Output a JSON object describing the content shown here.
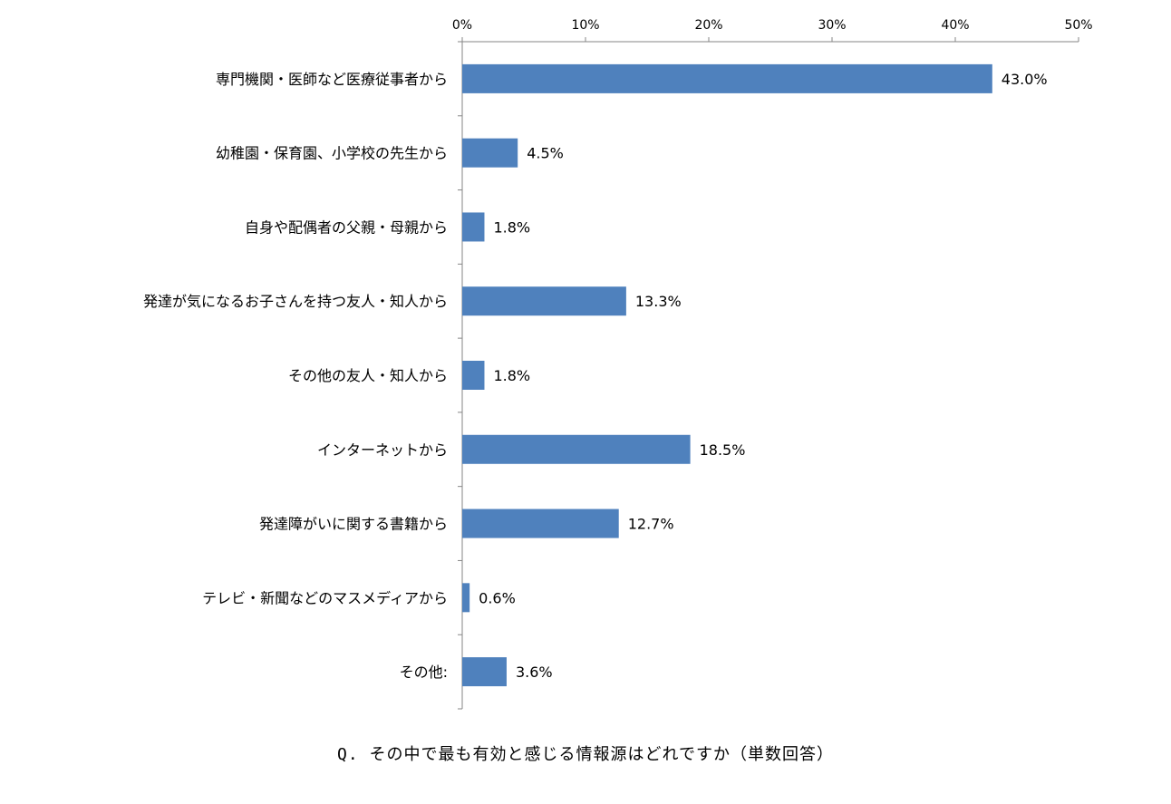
{
  "chart_data": {
    "type": "bar",
    "orientation": "horizontal",
    "categories": [
      "専門機関・医師など医療従事者から",
      "幼稚園・保育園、小学校の先生から",
      "自身や配偶者の父親・母親から",
      "発達が気になるお子さんを持つ友人・知人から",
      "その他の友人・知人から",
      "インターネットから",
      "発達障がいに関する書籍から",
      "テレビ・新聞などのマスメディアから",
      "その他:"
    ],
    "values": [
      43.0,
      4.5,
      1.8,
      13.3,
      1.8,
      18.5,
      12.7,
      0.6,
      3.6
    ],
    "value_labels": [
      "43.0%",
      "4.5%",
      "1.8%",
      "13.3%",
      "1.8%",
      "18.5%",
      "12.7%",
      "0.6%",
      "3.6%"
    ],
    "xlim": [
      0,
      50
    ],
    "xticks": [
      0,
      10,
      20,
      30,
      40,
      50
    ],
    "xtick_labels": [
      "0%",
      "10%",
      "20%",
      "30%",
      "40%",
      "50%"
    ],
    "axis_position": "top",
    "grid": false,
    "legend": "none",
    "bar_color": "#4F81BD",
    "caption": "Q. その中で最も有効と感じる情報源はどれですか（単数回答）"
  }
}
